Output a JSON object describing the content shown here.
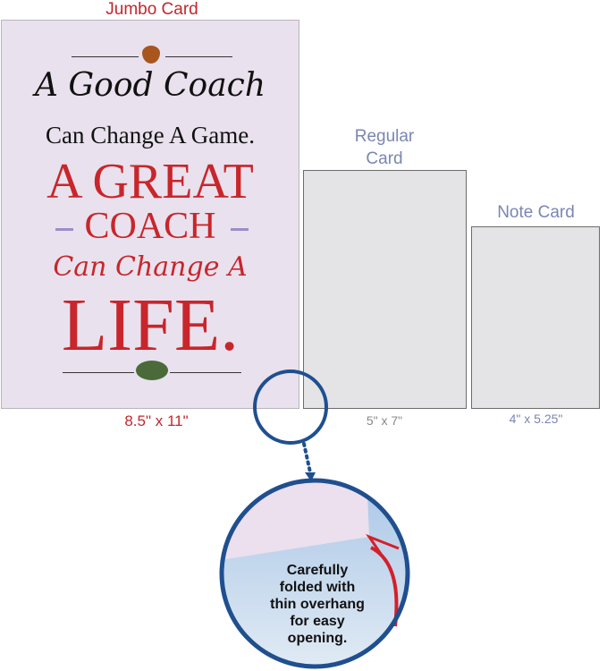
{
  "jumbo": {
    "label": "Jumbo Card",
    "size": "8.5\" x 11\"",
    "card_text": {
      "line1": "A Good Coach",
      "line2": "Can Change A Game.",
      "line3": "A GREAT",
      "line4": "COACH",
      "line5": "Can Change A",
      "line6": "LIFE."
    }
  },
  "regular": {
    "label_line1": "Regular",
    "label_line2": "Card",
    "size": "5\" x 7\""
  },
  "note": {
    "label": "Note Card",
    "size": "4\" x 5.25\""
  },
  "callout": {
    "text": [
      "Carefully",
      "folded with",
      "thin overhang",
      "for easy",
      "opening."
    ]
  },
  "colors": {
    "red": "#c8262b",
    "blue_label": "#7a86b4",
    "circle": "#1f4f8f",
    "card_bg": "#e9e1ee"
  }
}
